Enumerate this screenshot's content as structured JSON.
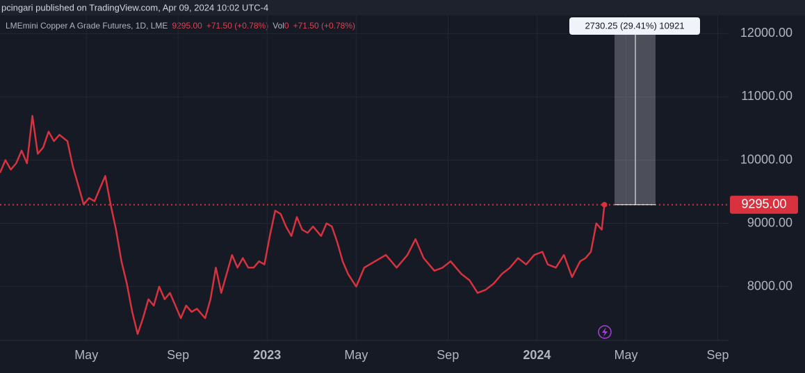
{
  "header": {
    "publisher": "pcingari published on TradingView.com, Apr 09, 2024 10:02 UTC-4"
  },
  "legend": {
    "symbol": "LMEmini Copper A Grade Futures, 1D, LME",
    "price": "9295.00",
    "change": "+71.50 (+0.78%)",
    "vol_label": "Vol",
    "vol_value": "0",
    "vol_change": "+71.50 (+0.78%)"
  },
  "chart_data": {
    "type": "line",
    "x": [
      2022.01,
      2022.03,
      2022.05,
      2022.07,
      2022.09,
      2022.11,
      2022.13,
      2022.15,
      2022.17,
      2022.19,
      2022.21,
      2022.23,
      2022.26,
      2022.28,
      2022.3,
      2022.32,
      2022.34,
      2022.36,
      2022.38,
      2022.4,
      2022.42,
      2022.44,
      2022.46,
      2022.48,
      2022.5,
      2022.52,
      2022.54,
      2022.56,
      2022.58,
      2022.6,
      2022.62,
      2022.64,
      2022.66,
      2022.68,
      2022.7,
      2022.72,
      2022.74,
      2022.77,
      2022.79,
      2022.81,
      2022.83,
      2022.85,
      2022.87,
      2022.89,
      2022.91,
      2022.93,
      2022.95,
      2022.97,
      2022.99,
      2023.01,
      2023.03,
      2023.05,
      2023.07,
      2023.09,
      2023.11,
      2023.13,
      2023.15,
      2023.17,
      2023.2,
      2023.22,
      2023.24,
      2023.26,
      2023.28,
      2023.3,
      2023.33,
      2023.36,
      2023.4,
      2023.44,
      2023.48,
      2023.52,
      2023.55,
      2023.58,
      2023.62,
      2023.65,
      2023.68,
      2023.72,
      2023.75,
      2023.78,
      2023.81,
      2023.84,
      2023.87,
      2023.9,
      2023.93,
      2023.96,
      2023.99,
      2024.02,
      2024.04,
      2024.07,
      2024.1,
      2024.13,
      2024.16,
      2024.18,
      2024.2,
      2024.22,
      2024.24,
      2024.25
    ],
    "series": [
      {
        "name": "LMEmini Copper A Grade Futures",
        "color": "#d8323f",
        "values": [
          9800,
          10000,
          9850,
          9950,
          10150,
          9950,
          10700,
          10100,
          10200,
          10450,
          10300,
          10400,
          10300,
          9900,
          9600,
          9300,
          9400,
          9350,
          9550,
          9750,
          9300,
          8900,
          8400,
          8050,
          7600,
          7250,
          7500,
          7800,
          7700,
          8000,
          7800,
          7900,
          7700,
          7500,
          7700,
          7600,
          7650,
          7500,
          7800,
          8300,
          7900,
          8200,
          8500,
          8300,
          8450,
          8300,
          8300,
          8400,
          8350,
          8800,
          9200,
          9150,
          8950,
          8800,
          9100,
          8900,
          8850,
          8950,
          8800,
          9000,
          8950,
          8700,
          8400,
          8200,
          8000,
          8300,
          8400,
          8500,
          8300,
          8500,
          8750,
          8450,
          8250,
          8300,
          8400,
          8200,
          8100,
          7900,
          7950,
          8050,
          8200,
          8300,
          8450,
          8350,
          8500,
          8550,
          8350,
          8300,
          8500,
          8150,
          8400,
          8450,
          8550,
          9000,
          8900,
          9295
        ]
      }
    ],
    "xlim": [
      2022.01,
      2024.71
    ],
    "xticks": [
      {
        "value": 2022.33,
        "label": "May"
      },
      {
        "value": 2022.67,
        "label": "Sep"
      },
      {
        "value": 2023,
        "label": "2023"
      },
      {
        "value": 2023.33,
        "label": "May"
      },
      {
        "value": 2023.67,
        "label": "Sep"
      },
      {
        "value": 2024,
        "label": "2024"
      },
      {
        "value": 2024.33,
        "label": "May"
      },
      {
        "value": 2024.67,
        "label": "Sep"
      }
    ],
    "ylim": [
      7150,
      12290
    ],
    "yticks": [
      {
        "value": 8000,
        "label": "8000.00"
      },
      {
        "value": 9000,
        "label": "9000.00"
      },
      {
        "value": 10000,
        "label": "10000.00"
      },
      {
        "value": 11000,
        "label": "11000.00"
      },
      {
        "value": 12000,
        "label": "12000.00"
      }
    ],
    "last_price": {
      "value": 9295,
      "label": "9295.00"
    },
    "annotation": "2730.25 (29.41%) 10921",
    "grid": true
  }
}
